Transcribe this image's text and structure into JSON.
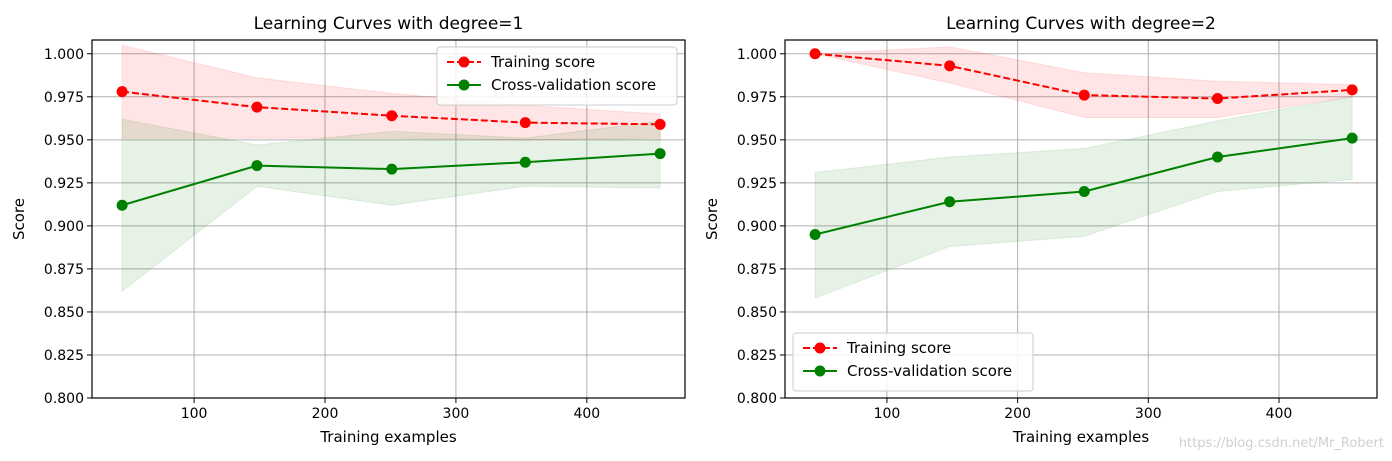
{
  "chart_data": [
    {
      "type": "line",
      "title": "Learning Curves with degree=1",
      "xlabel": "Training examples",
      "ylabel": "Score",
      "xlim": [
        22,
        475
      ],
      "ylim": [
        0.8,
        1.008
      ],
      "xticks": [
        100,
        200,
        300,
        400
      ],
      "xtick_labels": [
        "100",
        "200",
        "300",
        "400"
      ],
      "yticks": [
        0.8,
        0.825,
        0.85,
        0.875,
        0.9,
        0.925,
        0.95,
        0.975,
        1.0
      ],
      "ytick_labels": [
        "0.800",
        "0.825",
        "0.850",
        "0.875",
        "0.900",
        "0.925",
        "0.950",
        "0.975",
        "1.000"
      ],
      "grid": true,
      "legend_position": "top-right",
      "x": [
        45,
        148,
        251,
        353,
        456
      ],
      "series": [
        {
          "name": "Training score",
          "color": "#ff0000",
          "style": "dashed",
          "marker": "circle",
          "values": [
            0.978,
            0.969,
            0.964,
            0.96,
            0.959
          ],
          "band_upper": [
            1.005,
            0.986,
            0.977,
            0.97,
            0.965
          ],
          "band_lower": [
            0.951,
            0.951,
            0.951,
            0.95,
            0.951
          ]
        },
        {
          "name": "Cross-validation score",
          "color": "#008000",
          "style": "solid",
          "marker": "circle",
          "values": [
            0.912,
            0.935,
            0.933,
            0.937,
            0.942
          ],
          "band_upper": [
            0.962,
            0.947,
            0.955,
            0.951,
            0.961
          ],
          "band_lower": [
            0.862,
            0.923,
            0.912,
            0.923,
            0.922
          ]
        }
      ]
    },
    {
      "type": "line",
      "title": "Learning Curves with degree=2",
      "xlabel": "Training examples",
      "ylabel": "Score",
      "xlim": [
        22,
        475
      ],
      "ylim": [
        0.8,
        1.008
      ],
      "xticks": [
        100,
        200,
        300,
        400
      ],
      "xtick_labels": [
        "100",
        "200",
        "300",
        "400"
      ],
      "yticks": [
        0.8,
        0.825,
        0.85,
        0.875,
        0.9,
        0.925,
        0.95,
        0.975,
        1.0
      ],
      "ytick_labels": [
        "0.800",
        "0.825",
        "0.850",
        "0.875",
        "0.900",
        "0.925",
        "0.950",
        "0.975",
        "1.000"
      ],
      "grid": true,
      "legend_position": "bottom-left",
      "x": [
        45,
        148,
        251,
        353,
        456
      ],
      "series": [
        {
          "name": "Training score",
          "color": "#ff0000",
          "style": "dashed",
          "marker": "circle",
          "values": [
            1.0,
            0.993,
            0.976,
            0.974,
            0.979
          ],
          "band_upper": [
            1.0,
            1.004,
            0.989,
            0.984,
            0.982
          ],
          "band_lower": [
            1.0,
            0.983,
            0.963,
            0.963,
            0.975
          ]
        },
        {
          "name": "Cross-validation score",
          "color": "#008000",
          "style": "solid",
          "marker": "circle",
          "values": [
            0.895,
            0.914,
            0.92,
            0.94,
            0.951
          ],
          "band_upper": [
            0.931,
            0.94,
            0.945,
            0.961,
            0.975
          ],
          "band_lower": [
            0.858,
            0.888,
            0.894,
            0.92,
            0.927
          ]
        }
      ]
    }
  ],
  "watermark": "https://blog.csdn.net/Mr_Robert"
}
